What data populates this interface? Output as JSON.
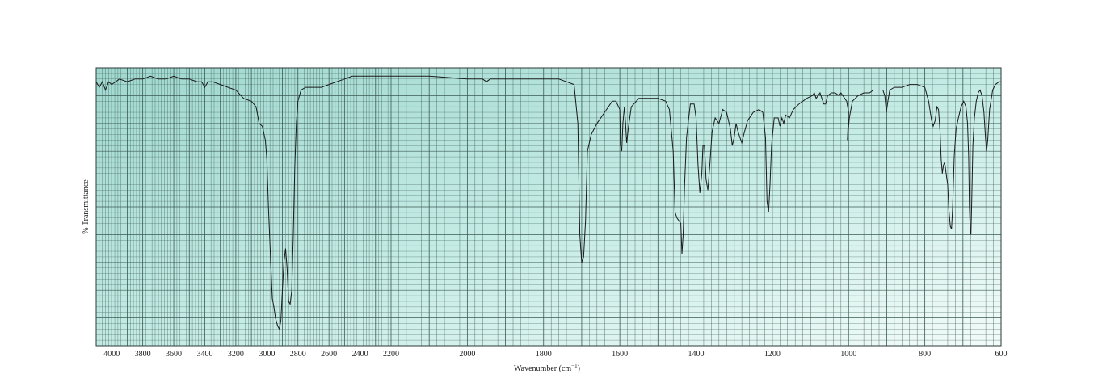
{
  "chart_data": {
    "type": "line",
    "xlabel": "Wavenumber (cm",
    "xlabel_sup": "−1",
    "xlabel_close": ")",
    "ylabel": "% Transmittance",
    "x_axis_reversed": true,
    "x_tick_labels_left_scale": [
      4000,
      3800,
      3600,
      3400,
      3200,
      3000,
      2800,
      2600,
      2400,
      2200
    ],
    "x_tick_labels_right_scale": [
      2000,
      1800,
      1600,
      1400,
      1200,
      1000,
      800,
      600
    ],
    "xlim": [
      4100,
      600
    ],
    "ylim": [
      0,
      100
    ],
    "grid": true,
    "colors": {
      "paper_teal": "#9fd8cf",
      "paper_light": "#f2fbf9",
      "grid": "#3c5a55",
      "line": "#1a1a1a"
    },
    "series": [
      {
        "points": [
          [
            4100,
            95
          ],
          [
            4080,
            93
          ],
          [
            4060,
            95
          ],
          [
            4040,
            92
          ],
          [
            4020,
            95
          ],
          [
            4000,
            94
          ],
          [
            3950,
            96
          ],
          [
            3900,
            95
          ],
          [
            3850,
            96
          ],
          [
            3800,
            96
          ],
          [
            3750,
            97
          ],
          [
            3700,
            96
          ],
          [
            3650,
            96
          ],
          [
            3600,
            97
          ],
          [
            3550,
            96
          ],
          [
            3500,
            96
          ],
          [
            3450,
            95
          ],
          [
            3420,
            95
          ],
          [
            3400,
            93
          ],
          [
            3380,
            95
          ],
          [
            3350,
            95
          ],
          [
            3300,
            94
          ],
          [
            3250,
            93
          ],
          [
            3200,
            92
          ],
          [
            3150,
            89
          ],
          [
            3100,
            88
          ],
          [
            3070,
            86
          ],
          [
            3050,
            80
          ],
          [
            3030,
            79
          ],
          [
            3010,
            74
          ],
          [
            3000,
            67
          ],
          [
            2990,
            50
          ],
          [
            2975,
            30
          ],
          [
            2965,
            17
          ],
          [
            2955,
            14
          ],
          [
            2945,
            10
          ],
          [
            2930,
            7
          ],
          [
            2920,
            6
          ],
          [
            2910,
            9
          ],
          [
            2900,
            20
          ],
          [
            2890,
            30
          ],
          [
            2880,
            35
          ],
          [
            2870,
            28
          ],
          [
            2860,
            16
          ],
          [
            2850,
            15
          ],
          [
            2840,
            20
          ],
          [
            2830,
            40
          ],
          [
            2820,
            65
          ],
          [
            2810,
            80
          ],
          [
            2800,
            88
          ],
          [
            2780,
            92
          ],
          [
            2750,
            93
          ],
          [
            2700,
            93
          ],
          [
            2650,
            93
          ],
          [
            2600,
            94
          ],
          [
            2550,
            95
          ],
          [
            2500,
            96
          ],
          [
            2450,
            97
          ],
          [
            2400,
            97
          ],
          [
            2300,
            97
          ],
          [
            2200,
            97
          ],
          [
            2100,
            97
          ],
          [
            2000,
            96
          ],
          [
            1960,
            96
          ],
          [
            1950,
            95
          ],
          [
            1940,
            96
          ],
          [
            1900,
            96
          ],
          [
            1850,
            96
          ],
          [
            1800,
            96
          ],
          [
            1760,
            96
          ],
          [
            1740,
            95
          ],
          [
            1720,
            94
          ],
          [
            1710,
            80
          ],
          [
            1705,
            40
          ],
          [
            1700,
            30
          ],
          [
            1695,
            32
          ],
          [
            1690,
            45
          ],
          [
            1685,
            70
          ],
          [
            1675,
            76
          ],
          [
            1660,
            80
          ],
          [
            1640,
            84
          ],
          [
            1620,
            88
          ],
          [
            1610,
            88
          ],
          [
            1600,
            85
          ],
          [
            1598,
            72
          ],
          [
            1595,
            70
          ],
          [
            1592,
            80
          ],
          [
            1588,
            86
          ],
          [
            1585,
            80
          ],
          [
            1582,
            73
          ],
          [
            1578,
            78
          ],
          [
            1570,
            86
          ],
          [
            1550,
            89
          ],
          [
            1520,
            89
          ],
          [
            1500,
            89
          ],
          [
            1480,
            88
          ],
          [
            1470,
            85
          ],
          [
            1460,
            70
          ],
          [
            1455,
            48
          ],
          [
            1450,
            46
          ],
          [
            1445,
            45
          ],
          [
            1440,
            44
          ],
          [
            1437,
            33
          ],
          [
            1434,
            40
          ],
          [
            1430,
            58
          ],
          [
            1425,
            75
          ],
          [
            1415,
            87
          ],
          [
            1405,
            87
          ],
          [
            1400,
            82
          ],
          [
            1395,
            65
          ],
          [
            1390,
            55
          ],
          [
            1385,
            62
          ],
          [
            1382,
            72
          ],
          [
            1378,
            72
          ],
          [
            1374,
            60
          ],
          [
            1369,
            56
          ],
          [
            1364,
            65
          ],
          [
            1358,
            77
          ],
          [
            1350,
            82
          ],
          [
            1340,
            80
          ],
          [
            1330,
            85
          ],
          [
            1320,
            84
          ],
          [
            1310,
            78
          ],
          [
            1305,
            72
          ],
          [
            1300,
            75
          ],
          [
            1295,
            80
          ],
          [
            1290,
            77
          ],
          [
            1280,
            73
          ],
          [
            1275,
            76
          ],
          [
            1265,
            81
          ],
          [
            1250,
            84
          ],
          [
            1235,
            85
          ],
          [
            1225,
            84
          ],
          [
            1218,
            75
          ],
          [
            1214,
            52
          ],
          [
            1210,
            48
          ],
          [
            1206,
            58
          ],
          [
            1202,
            72
          ],
          [
            1195,
            82
          ],
          [
            1185,
            82
          ],
          [
            1180,
            79
          ],
          [
            1175,
            82
          ],
          [
            1170,
            80
          ],
          [
            1165,
            83
          ],
          [
            1155,
            82
          ],
          [
            1145,
            85
          ],
          [
            1130,
            87
          ],
          [
            1110,
            89
          ],
          [
            1095,
            90
          ],
          [
            1090,
            91
          ],
          [
            1085,
            89
          ],
          [
            1080,
            90
          ],
          [
            1075,
            91
          ],
          [
            1070,
            89
          ],
          [
            1065,
            87
          ],
          [
            1060,
            87
          ],
          [
            1055,
            90
          ],
          [
            1045,
            91
          ],
          [
            1035,
            91
          ],
          [
            1025,
            90
          ],
          [
            1020,
            91
          ],
          [
            1015,
            90
          ],
          [
            1010,
            89
          ],
          [
            1005,
            88
          ],
          [
            1000,
            84
          ],
          [
            1003,
            74
          ],
          [
            998,
            82
          ],
          [
            990,
            88
          ],
          [
            975,
            90
          ],
          [
            960,
            91
          ],
          [
            945,
            91
          ],
          [
            935,
            92
          ],
          [
            915,
            92
          ],
          [
            910,
            92
          ],
          [
            905,
            90
          ],
          [
            901,
            84
          ],
          [
            897,
            88
          ],
          [
            892,
            92
          ],
          [
            880,
            93
          ],
          [
            860,
            93
          ],
          [
            840,
            94
          ],
          [
            820,
            94
          ],
          [
            800,
            93
          ],
          [
            790,
            88
          ],
          [
            782,
            81
          ],
          [
            778,
            79
          ],
          [
            773,
            81
          ],
          [
            768,
            86
          ],
          [
            764,
            85
          ],
          [
            760,
            77
          ],
          [
            757,
            67
          ],
          [
            754,
            62
          ],
          [
            751,
            65
          ],
          [
            748,
            66
          ],
          [
            744,
            62
          ],
          [
            740,
            58
          ],
          [
            737,
            49
          ],
          [
            733,
            43
          ],
          [
            730,
            42
          ],
          [
            727,
            50
          ],
          [
            723,
            68
          ],
          [
            718,
            78
          ],
          [
            712,
            82
          ],
          [
            705,
            86
          ],
          [
            698,
            88
          ],
          [
            692,
            86
          ],
          [
            688,
            80
          ],
          [
            685,
            68
          ],
          [
            683,
            50
          ],
          [
            681,
            42
          ],
          [
            679,
            40
          ],
          [
            677,
            52
          ],
          [
            674,
            72
          ],
          [
            670,
            82
          ],
          [
            665,
            88
          ],
          [
            660,
            91
          ],
          [
            655,
            92
          ],
          [
            650,
            90
          ],
          [
            645,
            84
          ],
          [
            641,
            75
          ],
          [
            638,
            70
          ],
          [
            635,
            74
          ],
          [
            630,
            85
          ],
          [
            622,
            92
          ],
          [
            615,
            94
          ],
          [
            605,
            95
          ],
          [
            600,
            95
          ]
        ]
      }
    ]
  }
}
